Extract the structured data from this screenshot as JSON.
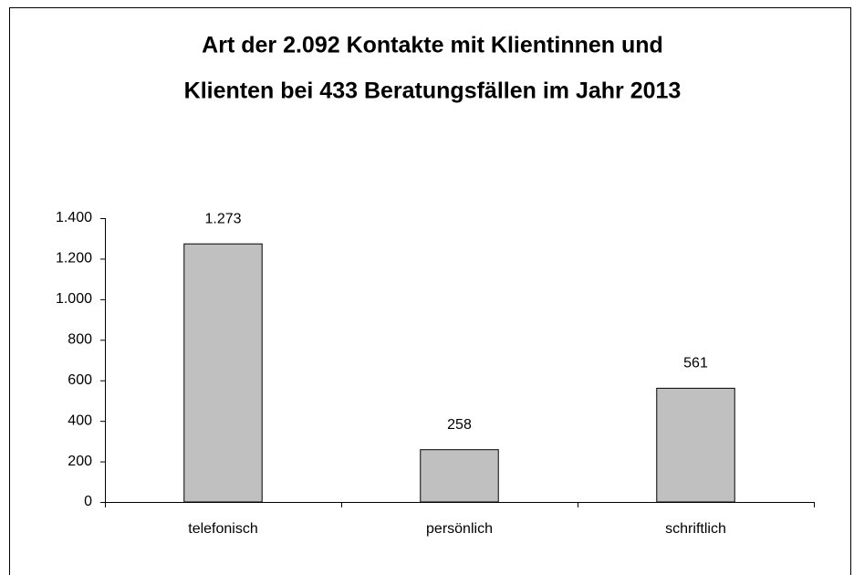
{
  "chart_data": {
    "type": "bar",
    "title": [
      "Art der 2.092 Kontakte mit Klientinnen und",
      "Klienten bei 433 Beratungsfällen im Jahr 2013"
    ],
    "categories": [
      "telefonisch",
      "persönlich",
      "schriftlich"
    ],
    "values": [
      1273,
      258,
      561
    ],
    "value_labels": [
      "1.273",
      "258",
      "561"
    ],
    "color": "#c0c0c0",
    "ylim": [
      0,
      1400
    ],
    "yticks": [
      0,
      200,
      400,
      600,
      800,
      {
        "value": 1000,
        "label": "1.000"
      },
      {
        "value": 1200,
        "label": "1.200"
      },
      {
        "value": 1400,
        "label": "1.400"
      }
    ],
    "grid": false
  }
}
